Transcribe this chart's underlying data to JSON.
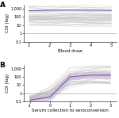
{
  "panel_A": {
    "x_ticks": [
      1,
      2,
      3,
      4,
      5
    ],
    "x_label": "Blood draw",
    "y_label": "COI (log)",
    "ylim_log": [
      0.1,
      3000
    ],
    "y_ticks": [
      0.1,
      1,
      10,
      100,
      1000
    ],
    "y_tick_labels": [
      "0.1",
      "1",
      "10",
      "100",
      "1,000"
    ],
    "hline_y": 1.0,
    "mean_line": [
      550,
      650,
      700,
      670,
      630
    ],
    "ci_upper": [
      700,
      820,
      870,
      840,
      790
    ],
    "ci_lower": [
      420,
      490,
      530,
      500,
      470
    ],
    "n_gray_lines": 45,
    "gray_seed": 12
  },
  "panel_B": {
    "x_ticks": [
      -1,
      0,
      1,
      2,
      3
    ],
    "x_label": "Serum collection to seroconversion",
    "y_label": "COI (log)",
    "ylim_log": [
      0.1,
      3000
    ],
    "y_ticks": [
      0.1,
      1,
      10,
      100,
      1000
    ],
    "y_tick_labels": [
      "0.1",
      "1",
      "10",
      "100",
      "1,000"
    ],
    "hline_y": 1.0,
    "mean_line": [
      0.15,
      0.35,
      100,
      160,
      155
    ],
    "ci_upper": [
      0.22,
      1.0,
      250,
      400,
      380
    ],
    "ci_lower": [
      0.1,
      0.15,
      40,
      70,
      65
    ],
    "n_gray_lines": 45,
    "gray_seed": 3
  },
  "gray_color": "#c0c0c0",
  "purple_color": "#7b5ea7",
  "purple_ci_color": "#c8b8e0",
  "hline_color": "#999999",
  "bg_color": "#ffffff",
  "label_fontsize": 4.0,
  "tick_fontsize": 3.5,
  "panel_label_fontsize": 6.5
}
